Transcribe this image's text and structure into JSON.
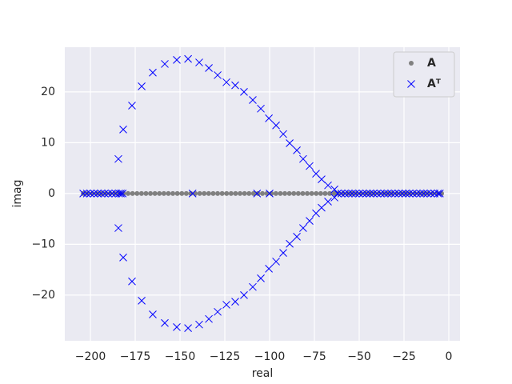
{
  "chart_data": {
    "type": "scatter",
    "xlabel": "real",
    "ylabel": "imag",
    "xlim": [
      -214.3,
      6.25
    ],
    "ylim": [
      -29.0,
      28.8
    ],
    "xticks": [
      {
        "value": -200,
        "label": "−200"
      },
      {
        "value": -175,
        "label": "−175"
      },
      {
        "value": -150,
        "label": "−150"
      },
      {
        "value": -125,
        "label": "−125"
      },
      {
        "value": -100,
        "label": "−100"
      },
      {
        "value": -75,
        "label": "−75"
      },
      {
        "value": -50,
        "label": "−50"
      },
      {
        "value": -25,
        "label": "−25"
      },
      0
    ],
    "yticks": [
      {
        "value": -20,
        "label": "−20"
      },
      {
        "value": -10,
        "label": "−10"
      },
      0,
      10,
      20
    ],
    "grid": true,
    "legend": "upper right",
    "series": [
      {
        "name": "A",
        "color": "#808080",
        "marker": "o",
        "x": [
          -204,
          -201.5,
          -199,
          -196.5,
          -194,
          -191.5,
          -189,
          -186.5,
          -184,
          -181.5,
          -179,
          -176.5,
          -174,
          -171.5,
          -169,
          -166.5,
          -164,
          -161.5,
          -159,
          -156.5,
          -154,
          -151.5,
          -149,
          -146.5,
          -144,
          -141.5,
          -139,
          -136.5,
          -134,
          -131.5,
          -129,
          -126.5,
          -124,
          -121.5,
          -119,
          -116.5,
          -114,
          -111.5,
          -109,
          -106.5,
          -104,
          -101.5,
          -99,
          -96.5,
          -94,
          -91.5,
          -89,
          -86.5,
          -84,
          -81.5,
          -79,
          -76.5,
          -74,
          -71.5,
          -69,
          -66.5,
          -64,
          -61.5,
          -59,
          -56.5,
          -54,
          -51.5,
          -49,
          -46.5,
          -44,
          -41.5,
          -39,
          -36.5,
          -34,
          -31.5,
          -29,
          -26.5,
          -24,
          -21.5,
          -19,
          -16.5,
          -14,
          -11.5,
          -9,
          -6.5,
          -4
        ],
        "values": [
          0,
          0,
          0,
          0,
          0,
          0,
          0,
          0,
          0,
          0,
          0,
          0,
          0,
          0,
          0,
          0,
          0,
          0,
          0,
          0,
          0,
          0,
          0,
          0,
          0,
          0,
          0,
          0,
          0,
          0,
          0,
          0,
          0,
          0,
          0,
          0,
          0,
          0,
          0,
          0,
          0,
          0,
          0,
          0,
          0,
          0,
          0,
          0,
          0,
          0,
          0,
          0,
          0,
          0,
          0,
          0,
          0,
          0,
          0,
          0,
          0,
          0,
          0,
          0,
          0,
          0,
          0,
          0,
          0,
          0,
          0,
          0,
          0,
          0,
          0,
          0,
          0,
          0,
          0,
          0,
          0
        ]
      },
      {
        "name": "Aᵀ",
        "color": "#0000ff",
        "marker": "x",
        "x": [
          -204,
          -202,
          -200,
          -198,
          -196,
          -194,
          -192,
          -190,
          -188,
          -186,
          -184,
          -183,
          -182,
          -143,
          -107,
          -100,
          -62,
          -60,
          -58,
          -56,
          -54,
          -52,
          -50,
          -48,
          -46,
          -44,
          -42,
          -40,
          -38,
          -36,
          -34,
          -32,
          -30,
          -28,
          -26,
          -24,
          -22,
          -20,
          -18,
          -16,
          -14,
          -12,
          -10,
          -8,
          -6,
          -5,
          -184.4,
          -181.7,
          -176.8,
          -171.4,
          -165.2,
          -158.5,
          -151.8,
          -145.5,
          -139.3,
          -133.9,
          -129.0,
          -124.1,
          -119.2,
          -114.3,
          -109.4,
          -104.9,
          -100.4,
          -96.4,
          -92.4,
          -88.8,
          -84.8,
          -81.3,
          -77.7,
          -74.1,
          -71.0,
          -67.4,
          -63.8,
          -184.4,
          -181.7,
          -176.8,
          -171.4,
          -165.2,
          -158.5,
          -151.8,
          -145.5,
          -139.3,
          -133.9,
          -129.0,
          -124.1,
          -119.2,
          -114.3,
          -109.4,
          -104.9,
          -100.4,
          -96.4,
          -92.4,
          -88.8,
          -84.8,
          -81.3,
          -77.7,
          -74.1,
          -71.0,
          -67.4,
          -63.8
        ],
        "values": [
          0,
          0,
          0,
          0,
          0,
          0,
          0,
          0,
          0,
          0,
          0,
          0,
          0,
          0,
          0,
          0,
          0,
          0,
          0,
          0,
          0,
          0,
          0,
          0,
          0,
          0,
          0,
          0,
          0,
          0,
          0,
          0,
          0,
          0,
          0,
          0,
          0,
          0,
          0,
          0,
          0,
          0,
          0,
          0,
          0,
          0,
          6.8,
          12.6,
          17.3,
          21.1,
          23.8,
          25.5,
          26.3,
          26.5,
          25.8,
          24.7,
          23.3,
          21.9,
          21.3,
          20.0,
          18.4,
          16.7,
          14.8,
          13.4,
          11.7,
          9.9,
          8.5,
          6.8,
          5.4,
          3.9,
          2.8,
          1.6,
          0.8,
          -6.8,
          -12.6,
          -17.3,
          -21.1,
          -23.8,
          -25.5,
          -26.3,
          -26.5,
          -25.8,
          -24.7,
          -23.3,
          -21.9,
          -21.3,
          -20.0,
          -18.4,
          -16.7,
          -14.8,
          -13.4,
          -11.7,
          -9.9,
          -8.5,
          -6.8,
          -5.4,
          -3.9,
          -2.8,
          -1.6,
          -0.8
        ]
      }
    ]
  }
}
